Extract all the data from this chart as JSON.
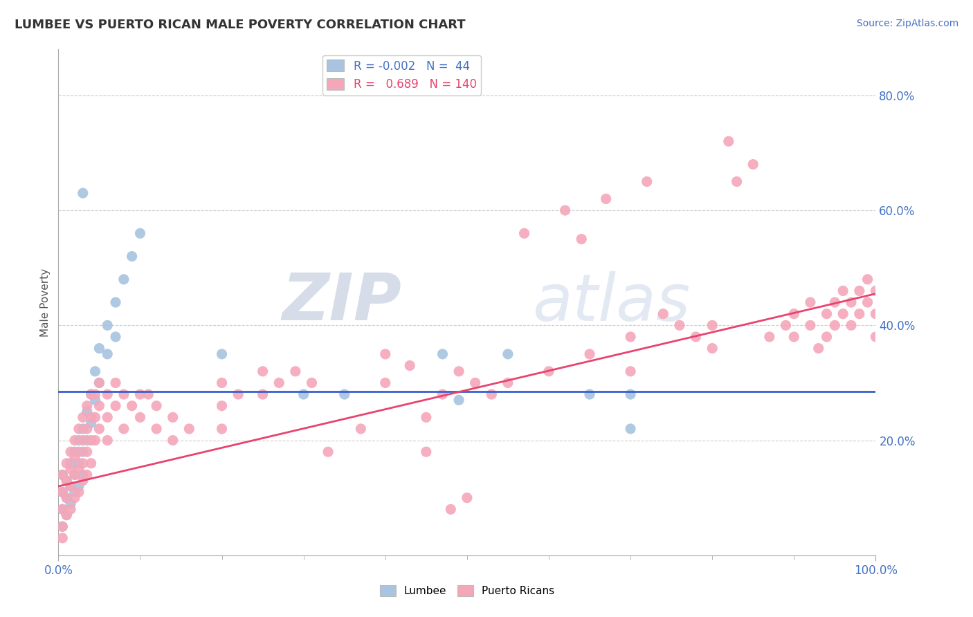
{
  "title": "LUMBEE VS PUERTO RICAN MALE POVERTY CORRELATION CHART",
  "source": "Source: ZipAtlas.com",
  "ylabel": "Male Poverty",
  "xlim": [
    0.0,
    1.0
  ],
  "ylim": [
    0.0,
    0.88
  ],
  "yticks": [
    0.0,
    0.2,
    0.4,
    0.6,
    0.8
  ],
  "ytick_labels": [
    "",
    "20.0%",
    "40.0%",
    "60.0%",
    "80.0%"
  ],
  "xtick_labels": [
    "0.0%",
    "100.0%"
  ],
  "legend_r_lumbee": "-0.002",
  "legend_n_lumbee": "44",
  "legend_r_puerto": "0.689",
  "legend_n_puerto": "140",
  "lumbee_color": "#a8c4e0",
  "puerto_color": "#f4a7b9",
  "lumbee_line_color": "#3a5fcd",
  "puerto_line_color": "#e8436e",
  "background_color": "#ffffff",
  "watermark_zip": "ZIP",
  "watermark_atlas": "atlas",
  "lumbee_line_y": 0.285,
  "puerto_line_start": 0.12,
  "puerto_line_end": 0.455,
  "lumbee_points": [
    [
      0.005,
      0.14
    ],
    [
      0.005,
      0.11
    ],
    [
      0.005,
      0.08
    ],
    [
      0.005,
      0.05
    ],
    [
      0.01,
      0.13
    ],
    [
      0.01,
      0.1
    ],
    [
      0.01,
      0.07
    ],
    [
      0.015,
      0.16
    ],
    [
      0.015,
      0.12
    ],
    [
      0.015,
      0.09
    ],
    [
      0.02,
      0.18
    ],
    [
      0.02,
      0.14
    ],
    [
      0.02,
      0.11
    ],
    [
      0.025,
      0.2
    ],
    [
      0.025,
      0.16
    ],
    [
      0.025,
      0.12
    ],
    [
      0.03,
      0.22
    ],
    [
      0.03,
      0.18
    ],
    [
      0.03,
      0.14
    ],
    [
      0.035,
      0.25
    ],
    [
      0.035,
      0.2
    ],
    [
      0.04,
      0.28
    ],
    [
      0.04,
      0.23
    ],
    [
      0.045,
      0.32
    ],
    [
      0.045,
      0.27
    ],
    [
      0.05,
      0.36
    ],
    [
      0.05,
      0.3
    ],
    [
      0.06,
      0.4
    ],
    [
      0.06,
      0.35
    ],
    [
      0.07,
      0.44
    ],
    [
      0.07,
      0.38
    ],
    [
      0.08,
      0.48
    ],
    [
      0.09,
      0.52
    ],
    [
      0.1,
      0.56
    ],
    [
      0.03,
      0.63
    ],
    [
      0.2,
      0.35
    ],
    [
      0.3,
      0.28
    ],
    [
      0.35,
      0.28
    ],
    [
      0.47,
      0.35
    ],
    [
      0.49,
      0.27
    ],
    [
      0.55,
      0.35
    ],
    [
      0.65,
      0.28
    ],
    [
      0.7,
      0.28
    ],
    [
      0.7,
      0.22
    ]
  ],
  "puerto_points": [
    [
      0.005,
      0.14
    ],
    [
      0.005,
      0.11
    ],
    [
      0.005,
      0.08
    ],
    [
      0.005,
      0.05
    ],
    [
      0.005,
      0.03
    ],
    [
      0.01,
      0.16
    ],
    [
      0.01,
      0.13
    ],
    [
      0.01,
      0.1
    ],
    [
      0.01,
      0.07
    ],
    [
      0.015,
      0.18
    ],
    [
      0.015,
      0.15
    ],
    [
      0.015,
      0.12
    ],
    [
      0.015,
      0.08
    ],
    [
      0.02,
      0.2
    ],
    [
      0.02,
      0.17
    ],
    [
      0.02,
      0.14
    ],
    [
      0.02,
      0.1
    ],
    [
      0.025,
      0.22
    ],
    [
      0.025,
      0.18
    ],
    [
      0.025,
      0.15
    ],
    [
      0.025,
      0.11
    ],
    [
      0.03,
      0.24
    ],
    [
      0.03,
      0.2
    ],
    [
      0.03,
      0.16
    ],
    [
      0.03,
      0.13
    ],
    [
      0.035,
      0.26
    ],
    [
      0.035,
      0.22
    ],
    [
      0.035,
      0.18
    ],
    [
      0.035,
      0.14
    ],
    [
      0.04,
      0.28
    ],
    [
      0.04,
      0.24
    ],
    [
      0.04,
      0.2
    ],
    [
      0.04,
      0.16
    ],
    [
      0.045,
      0.28
    ],
    [
      0.045,
      0.24
    ],
    [
      0.045,
      0.2
    ],
    [
      0.05,
      0.3
    ],
    [
      0.05,
      0.26
    ],
    [
      0.05,
      0.22
    ],
    [
      0.06,
      0.28
    ],
    [
      0.06,
      0.24
    ],
    [
      0.06,
      0.2
    ],
    [
      0.07,
      0.3
    ],
    [
      0.07,
      0.26
    ],
    [
      0.08,
      0.28
    ],
    [
      0.08,
      0.22
    ],
    [
      0.09,
      0.26
    ],
    [
      0.1,
      0.28
    ],
    [
      0.1,
      0.24
    ],
    [
      0.11,
      0.28
    ],
    [
      0.12,
      0.26
    ],
    [
      0.12,
      0.22
    ],
    [
      0.14,
      0.24
    ],
    [
      0.14,
      0.2
    ],
    [
      0.16,
      0.22
    ],
    [
      0.2,
      0.3
    ],
    [
      0.2,
      0.26
    ],
    [
      0.22,
      0.28
    ],
    [
      0.25,
      0.32
    ],
    [
      0.25,
      0.28
    ],
    [
      0.27,
      0.3
    ],
    [
      0.29,
      0.32
    ],
    [
      0.31,
      0.3
    ],
    [
      0.33,
      0.18
    ],
    [
      0.37,
      0.22
    ],
    [
      0.4,
      0.35
    ],
    [
      0.4,
      0.3
    ],
    [
      0.43,
      0.33
    ],
    [
      0.45,
      0.18
    ],
    [
      0.47,
      0.28
    ],
    [
      0.49,
      0.32
    ],
    [
      0.5,
      0.1
    ],
    [
      0.51,
      0.3
    ],
    [
      0.53,
      0.28
    ],
    [
      0.55,
      0.3
    ],
    [
      0.57,
      0.56
    ],
    [
      0.6,
      0.32
    ],
    [
      0.62,
      0.6
    ],
    [
      0.64,
      0.55
    ],
    [
      0.65,
      0.35
    ],
    [
      0.67,
      0.62
    ],
    [
      0.7,
      0.38
    ],
    [
      0.7,
      0.32
    ],
    [
      0.72,
      0.65
    ],
    [
      0.74,
      0.42
    ],
    [
      0.76,
      0.4
    ],
    [
      0.78,
      0.38
    ],
    [
      0.8,
      0.4
    ],
    [
      0.8,
      0.36
    ],
    [
      0.82,
      0.72
    ],
    [
      0.83,
      0.65
    ],
    [
      0.85,
      0.68
    ],
    [
      0.87,
      0.38
    ],
    [
      0.89,
      0.4
    ],
    [
      0.9,
      0.42
    ],
    [
      0.9,
      0.38
    ],
    [
      0.92,
      0.44
    ],
    [
      0.92,
      0.4
    ],
    [
      0.93,
      0.36
    ],
    [
      0.94,
      0.42
    ],
    [
      0.94,
      0.38
    ],
    [
      0.95,
      0.44
    ],
    [
      0.95,
      0.4
    ],
    [
      0.96,
      0.46
    ],
    [
      0.96,
      0.42
    ],
    [
      0.97,
      0.44
    ],
    [
      0.97,
      0.4
    ],
    [
      0.98,
      0.46
    ],
    [
      0.98,
      0.42
    ],
    [
      0.99,
      0.48
    ],
    [
      0.99,
      0.44
    ],
    [
      1.0,
      0.46
    ],
    [
      1.0,
      0.42
    ],
    [
      1.0,
      0.38
    ],
    [
      0.48,
      0.08
    ],
    [
      0.2,
      0.22
    ],
    [
      0.45,
      0.24
    ]
  ]
}
